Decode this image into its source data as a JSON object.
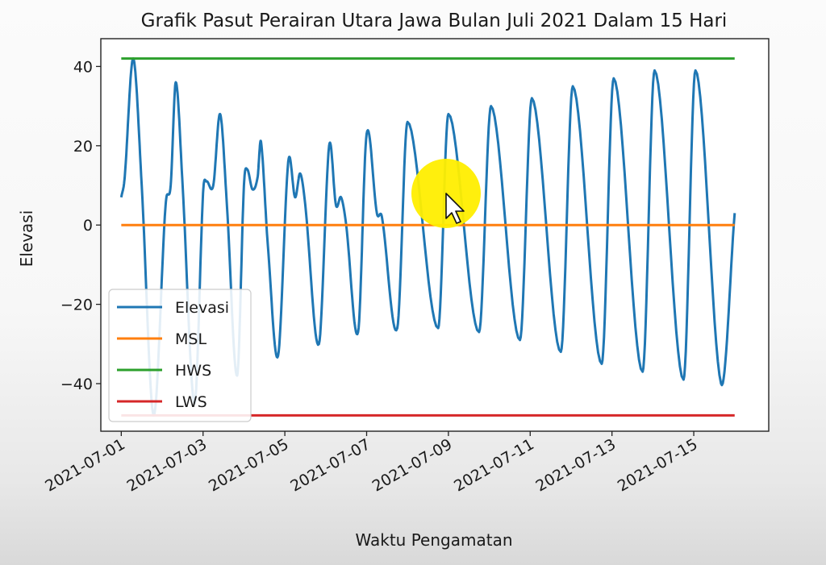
{
  "chart_data": {
    "type": "line",
    "title": "Grafik Pasut Perairan Utara Jawa Bulan Juli 2021 Dalam 15 Hari",
    "xlabel": "Waktu Pengamatan",
    "ylabel": "Elevasi",
    "x_range": [
      "2021-07-01",
      "2021-07-16"
    ],
    "xlim": [
      "2021-06-30T12:00",
      "2021-07-16T20:00"
    ],
    "ylim": [
      -52,
      47
    ],
    "x_ticks": [
      "2021-07-01",
      "2021-07-03",
      "2021-07-05",
      "2021-07-07",
      "2021-07-09",
      "2021-07-11",
      "2021-07-13",
      "2021-07-15"
    ],
    "y_ticks": [
      40,
      20,
      0,
      -20,
      -40
    ],
    "y_tick_labels": [
      "40",
      "20",
      "0",
      "−20",
      "−40"
    ],
    "grid": false,
    "legend_position": "lower-left",
    "series": [
      {
        "name": "Elevasi",
        "color": "#1f77b4",
        "points": [
          [
            "2021-07-01T00:00",
            7
          ],
          [
            "2021-07-01T02:00",
            12
          ],
          [
            "2021-07-01T07:00",
            42
          ],
          [
            "2021-07-01T12:00",
            10
          ],
          [
            "2021-07-01T19:00",
            -48
          ],
          [
            "2021-07-02T02:00",
            5
          ],
          [
            "2021-07-02T05:00",
            10
          ],
          [
            "2021-07-02T08:00",
            36
          ],
          [
            "2021-07-02T12:00",
            10
          ],
          [
            "2021-07-02T19:00",
            -45
          ],
          [
            "2021-07-03T00:00",
            8
          ],
          [
            "2021-07-03T02:00",
            11
          ],
          [
            "2021-07-03T06:00",
            10
          ],
          [
            "2021-07-03T10:00",
            28
          ],
          [
            "2021-07-03T14:00",
            5
          ],
          [
            "2021-07-03T20:00",
            -38
          ],
          [
            "2021-07-04T00:00",
            10
          ],
          [
            "2021-07-04T02:00",
            14
          ],
          [
            "2021-07-04T05:00",
            9
          ],
          [
            "2021-07-04T08:00",
            12
          ],
          [
            "2021-07-04T10:00",
            21
          ],
          [
            "2021-07-04T14:00",
            -5
          ],
          [
            "2021-07-04T20:00",
            -33
          ],
          [
            "2021-07-05T02:00",
            16
          ],
          [
            "2021-07-05T06:00",
            7
          ],
          [
            "2021-07-05T09:00",
            13
          ],
          [
            "2021-07-05T12:00",
            5
          ],
          [
            "2021-07-05T20:00",
            -30
          ],
          [
            "2021-07-06T02:00",
            20
          ],
          [
            "2021-07-06T06:00",
            5
          ],
          [
            "2021-07-06T09:00",
            7
          ],
          [
            "2021-07-06T12:00",
            0
          ],
          [
            "2021-07-06T19:00",
            -27
          ],
          [
            "2021-07-07T00:00",
            23
          ],
          [
            "2021-07-07T06:00",
            3
          ],
          [
            "2021-07-07T09:00",
            2
          ],
          [
            "2021-07-07T18:00",
            -26
          ],
          [
            "2021-07-08T00:00",
            26
          ],
          [
            "2021-07-08T18:00",
            -26
          ],
          [
            "2021-07-09T00:00",
            28
          ],
          [
            "2021-07-09T18:00",
            -27
          ],
          [
            "2021-07-10T01:00",
            30
          ],
          [
            "2021-07-10T18:00",
            -29
          ],
          [
            "2021-07-11T01:00",
            32
          ],
          [
            "2021-07-11T18:00",
            -32
          ],
          [
            "2021-07-12T01:00",
            35
          ],
          [
            "2021-07-12T18:00",
            -35
          ],
          [
            "2021-07-13T01:00",
            37
          ],
          [
            "2021-07-13T18:00",
            -37
          ],
          [
            "2021-07-14T01:00",
            39
          ],
          [
            "2021-07-14T18:00",
            -39
          ],
          [
            "2021-07-15T01:00",
            39
          ],
          [
            "2021-07-15T16:00",
            -40
          ],
          [
            "2021-07-16T00:00",
            3
          ]
        ]
      },
      {
        "name": "MSL",
        "color": "#ff7f0e",
        "constant": 0
      },
      {
        "name": "HWS",
        "color": "#2ca02c",
        "constant": 42
      },
      {
        "name": "LWS",
        "color": "#d62728",
        "constant": -48
      }
    ]
  },
  "overlay": {
    "cursor_highlight_color": "#ffee00",
    "cursor_icon": "mouse-pointer-icon"
  }
}
